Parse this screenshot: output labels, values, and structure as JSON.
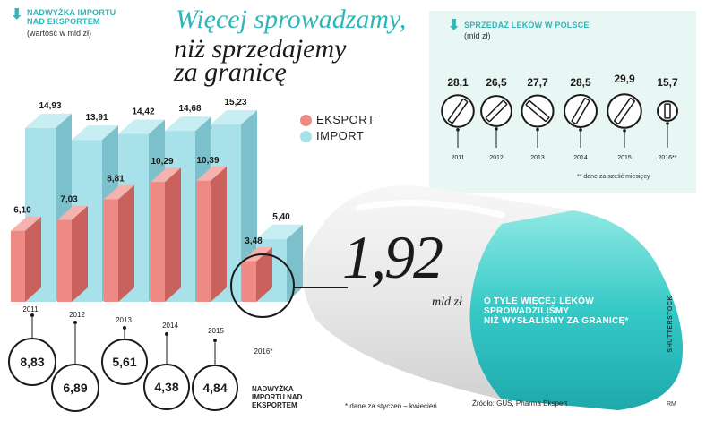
{
  "header_left": {
    "title_line1": "NADWYŻKA IMPORTU",
    "title_line2": "NAD EKSPORTEM",
    "unit": "(wartość w mld zł)"
  },
  "headline": {
    "line1": "Więcej sprowadzamy,",
    "line2": "niż sprzedajemy",
    "line3": "za granicę"
  },
  "legend": {
    "export_label": "EKSPORT",
    "import_label": "IMPORT"
  },
  "colors": {
    "export": "#ee8a84",
    "export_side": "#c9615c",
    "import": "#a9e1ea",
    "import_side": "#7cc0cb",
    "accent": "#2fb6b9",
    "panel": "#e8f6f4"
  },
  "sales_panel": {
    "title": "SPRZEDAŻ LEKÓW W POLSCE",
    "unit": "(mld zł)",
    "footnote": "** dane za sześć miesięcy"
  },
  "center_callout": {
    "value": "1,92",
    "unit": "mld zł",
    "caption_line1": "O TYLE WIĘCEJ LEKÓW",
    "caption_line2": "SPROWADZILIŚMY",
    "caption_line3": "NIŻ WYSŁALIŚMY ZA GRANICĘ*"
  },
  "surplus_label": {
    "line1": "NADWYŻKA",
    "line2": "IMPORTU NAD",
    "line3": "EKSPORTEM"
  },
  "footer": {
    "footnote": "* dane za styczeń – kwiecień",
    "source": "Źródło: GUS, Pharma Ekspert",
    "credit": "SHUTTERSTOCK",
    "initials": "RM"
  },
  "chart_data": [
    {
      "type": "bar",
      "title": "NADWYŻKA IMPORTU NAD EKSPORTEM",
      "ylabel": "(wartość w mld zł)",
      "categories": [
        "2011",
        "2012",
        "2013",
        "2014",
        "2015",
        "2016*"
      ],
      "series": [
        {
          "name": "EKSPORT",
          "values": [
            6.1,
            7.03,
            8.81,
            10.29,
            10.39,
            3.48
          ],
          "labels": [
            "6,10",
            "7,03",
            "8,81",
            "10,29",
            "10,39",
            "3,48"
          ]
        },
        {
          "name": "IMPORT",
          "values": [
            14.93,
            13.91,
            14.42,
            14.68,
            15.23,
            5.4
          ],
          "labels": [
            "14,93",
            "13,91",
            "14,42",
            "14,68",
            "15,23",
            "5,40"
          ]
        }
      ],
      "surplus": [
        8.83,
        6.89,
        5.61,
        4.38,
        4.84,
        1.92
      ],
      "surplus_labels": [
        "8,83",
        "6,89",
        "5,61",
        "4,38",
        "4,84"
      ],
      "ylim": [
        0,
        16
      ]
    },
    {
      "type": "bar",
      "title": "SPRZEDAŻ LEKÓW W POLSCE",
      "ylabel": "(mld zł)",
      "categories": [
        "2011",
        "2012",
        "2013",
        "2014",
        "2015",
        "2016**"
      ],
      "values": [
        28.1,
        26.5,
        27.7,
        28.5,
        29.9,
        15.7
      ],
      "labels": [
        "28,1",
        "26,5",
        "27,7",
        "28,5",
        "29,9",
        "15,7"
      ]
    }
  ]
}
